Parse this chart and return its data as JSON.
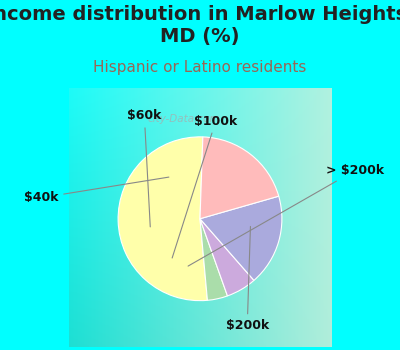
{
  "title": "Income distribution in Marlow Heights,\nMD (%)",
  "subtitle": "Hispanic or Latino residents",
  "slices": [
    {
      "label": "$200k",
      "value": 52,
      "color": "#FFFFAA"
    },
    {
      "label": "> $200k",
      "value": 4,
      "color": "#AADDAA"
    },
    {
      "label": "$100k",
      "value": 6,
      "color": "#CCAADD"
    },
    {
      "label": "$60k",
      "value": 18,
      "color": "#AAAADD"
    },
    {
      "label": "$40k",
      "value": 20,
      "color": "#FFBBBB"
    }
  ],
  "background_top": "#00FFFF",
  "title_color": "#222222",
  "subtitle_color": "#996655",
  "title_fontsize": 14,
  "subtitle_fontsize": 11,
  "label_fontsize": 9,
  "watermark": "city-Data.com",
  "startangle": 88
}
